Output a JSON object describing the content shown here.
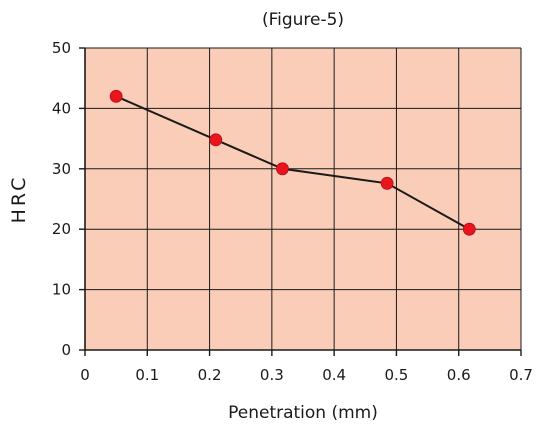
{
  "chart_data": {
    "type": "line",
    "title": "(Figure-5)",
    "xlabel": "Penetration (mm)",
    "ylabel": "HRC",
    "x": [
      0.05,
      0.21,
      0.317,
      0.485,
      0.617
    ],
    "series": [
      {
        "values": [
          42,
          34.8,
          30,
          27.6,
          20
        ]
      }
    ],
    "xlim": [
      0,
      0.7
    ],
    "ylim": [
      0,
      50
    ],
    "xticks": [
      "0",
      "0.1",
      "0.2",
      "0.3",
      "0.4",
      "0.5",
      "0.6",
      "0.7"
    ],
    "yticks": [
      "0",
      "10",
      "20",
      "30",
      "40",
      "50"
    ],
    "grid": true,
    "colors": {
      "plot_background": "#f9cdb7",
      "grid": "#1a1a1a",
      "line": "#1a1a1a",
      "marker": "#e8141e"
    }
  }
}
